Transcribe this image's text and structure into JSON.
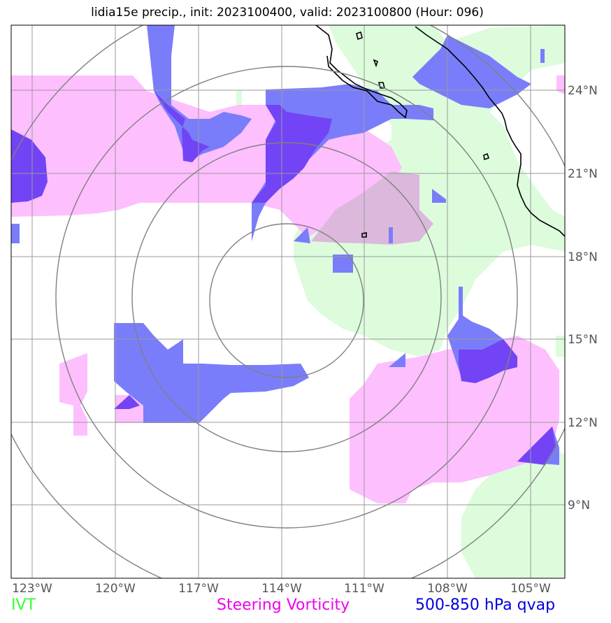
{
  "title": "lidia15e precip., init: 2023100400, valid: 2023100800 (Hour: 096)",
  "map": {
    "lon_ticks": [
      "123°W",
      "120°W",
      "117°W",
      "114°W",
      "111°W",
      "108°W",
      "105°W"
    ],
    "lat_ticks": [
      "24°N",
      "21°N",
      "18°N",
      "15°N",
      "12°N",
      "9°N"
    ],
    "range_rings": 4,
    "grid": true
  },
  "legend": {
    "ivt": {
      "label": "IVT",
      "color": "#33ff33"
    },
    "vorticity": {
      "label": "Steering Vorticity",
      "color": "#ee00ee"
    },
    "qvap": {
      "label": "500-850 hPa qvap",
      "color": "#0000dd"
    }
  },
  "colors": {
    "ivt_fill": "#dcfcdc",
    "vort_fill": "#fdbffd",
    "qvap_fill": "#7a7dfa",
    "qvap_strong": "#7244f5",
    "overlap": "#dcb8dc",
    "grid": "#9a9a9a",
    "ring": "#808080"
  }
}
